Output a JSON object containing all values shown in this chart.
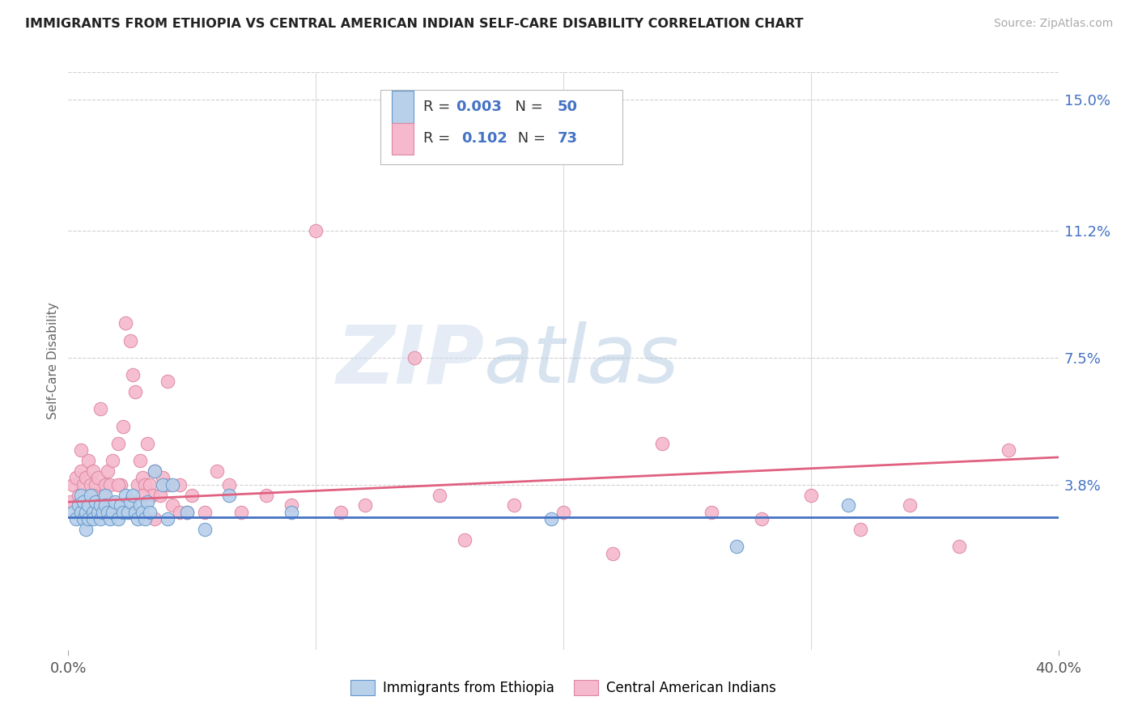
{
  "title": "IMMIGRANTS FROM ETHIOPIA VS CENTRAL AMERICAN INDIAN SELF-CARE DISABILITY CORRELATION CHART",
  "source": "Source: ZipAtlas.com",
  "ylabel": "Self-Care Disability",
  "xlim": [
    0.0,
    0.4
  ],
  "ylim": [
    -0.01,
    0.158
  ],
  "ytick_positions": [
    0.038,
    0.075,
    0.112,
    0.15
  ],
  "ytick_labels": [
    "3.8%",
    "7.5%",
    "11.2%",
    "15.0%"
  ],
  "series1_color": "#b8d0ea",
  "series1_edge": "#6699cc",
  "series1_line": "#4472c4",
  "series1_label": "Immigrants from Ethiopia",
  "series1_r": "0.003",
  "series1_n": "50",
  "series2_color": "#f5b8cc",
  "series2_edge": "#dd88a0",
  "series2_line": "#e06080",
  "series2_label": "Central American Indians",
  "series2_r": "0.102",
  "series2_n": "73",
  "legend_color": "#4472c4",
  "watermark_text": "ZIPatlas",
  "background_color": "#ffffff",
  "grid_color": "#d0d0d0",
  "title_color": "#222222",
  "right_tick_color": "#4472c4",
  "scatter1_x": [
    0.002,
    0.003,
    0.004,
    0.005,
    0.005,
    0.006,
    0.006,
    0.007,
    0.007,
    0.008,
    0.008,
    0.009,
    0.01,
    0.01,
    0.011,
    0.012,
    0.013,
    0.013,
    0.014,
    0.015,
    0.015,
    0.016,
    0.017,
    0.018,
    0.019,
    0.02,
    0.021,
    0.022,
    0.023,
    0.024,
    0.025,
    0.026,
    0.027,
    0.028,
    0.029,
    0.03,
    0.031,
    0.032,
    0.033,
    0.035,
    0.038,
    0.04,
    0.042,
    0.048,
    0.055,
    0.065,
    0.09,
    0.195,
    0.27,
    0.315
  ],
  "scatter1_y": [
    0.03,
    0.028,
    0.032,
    0.035,
    0.03,
    0.028,
    0.033,
    0.03,
    0.025,
    0.032,
    0.028,
    0.035,
    0.03,
    0.028,
    0.033,
    0.03,
    0.032,
    0.028,
    0.03,
    0.035,
    0.032,
    0.03,
    0.028,
    0.03,
    0.033,
    0.028,
    0.032,
    0.03,
    0.035,
    0.03,
    0.033,
    0.035,
    0.03,
    0.028,
    0.032,
    0.03,
    0.028,
    0.033,
    0.03,
    0.042,
    0.038,
    0.028,
    0.038,
    0.03,
    0.025,
    0.035,
    0.03,
    0.028,
    0.02,
    0.032
  ],
  "scatter2_x": [
    0.001,
    0.002,
    0.003,
    0.004,
    0.005,
    0.006,
    0.007,
    0.008,
    0.009,
    0.01,
    0.011,
    0.012,
    0.013,
    0.014,
    0.015,
    0.016,
    0.017,
    0.018,
    0.019,
    0.02,
    0.021,
    0.022,
    0.023,
    0.025,
    0.026,
    0.027,
    0.028,
    0.029,
    0.03,
    0.031,
    0.032,
    0.033,
    0.034,
    0.035,
    0.037,
    0.038,
    0.04,
    0.042,
    0.045,
    0.048,
    0.05,
    0.055,
    0.06,
    0.065,
    0.07,
    0.08,
    0.09,
    0.1,
    0.11,
    0.12,
    0.14,
    0.15,
    0.16,
    0.18,
    0.2,
    0.22,
    0.24,
    0.26,
    0.28,
    0.3,
    0.32,
    0.34,
    0.36,
    0.38,
    0.005,
    0.01,
    0.015,
    0.02,
    0.025,
    0.03,
    0.035,
    0.04,
    0.045
  ],
  "scatter2_y": [
    0.033,
    0.038,
    0.04,
    0.035,
    0.042,
    0.038,
    0.04,
    0.045,
    0.038,
    0.042,
    0.038,
    0.04,
    0.06,
    0.035,
    0.038,
    0.042,
    0.038,
    0.045,
    0.03,
    0.05,
    0.038,
    0.055,
    0.085,
    0.08,
    0.07,
    0.065,
    0.038,
    0.045,
    0.04,
    0.038,
    0.05,
    0.038,
    0.035,
    0.042,
    0.035,
    0.04,
    0.068,
    0.032,
    0.038,
    0.03,
    0.035,
    0.03,
    0.042,
    0.038,
    0.03,
    0.035,
    0.032,
    0.112,
    0.03,
    0.032,
    0.075,
    0.035,
    0.022,
    0.032,
    0.03,
    0.018,
    0.05,
    0.03,
    0.028,
    0.035,
    0.025,
    0.032,
    0.02,
    0.048,
    0.048,
    0.035,
    0.032,
    0.038,
    0.03,
    0.035,
    0.028,
    0.038,
    0.03
  ],
  "trendline1_y0": 0.0285,
  "trendline1_y1": 0.0285,
  "trendline2_y0": 0.033,
  "trendline2_y1": 0.046
}
